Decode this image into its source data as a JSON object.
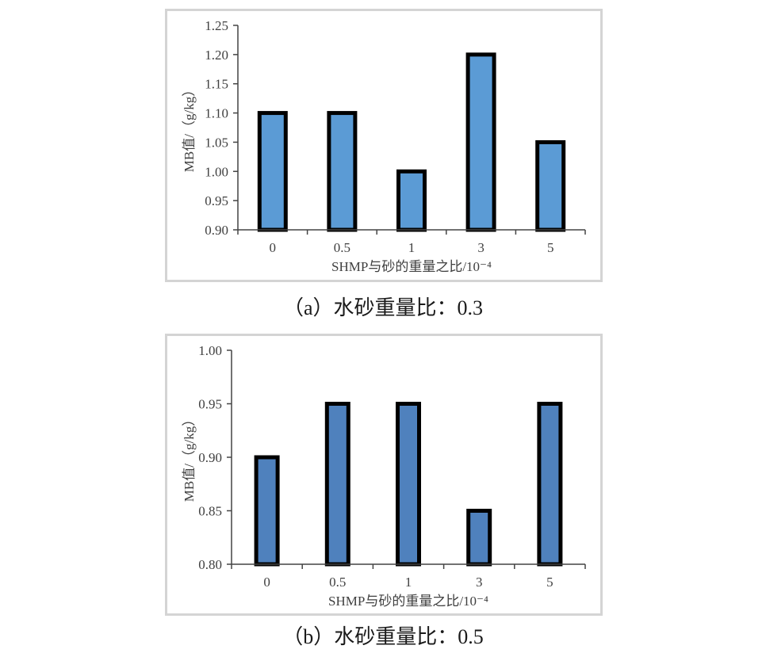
{
  "chart_data": [
    {
      "type": "bar",
      "categories": [
        "0",
        "0.5",
        "1",
        "3",
        "5"
      ],
      "values": [
        1.1,
        1.1,
        1.0,
        1.2,
        1.05
      ],
      "xlabel": "SHMP与砂的重量之比/10⁻⁴",
      "ylabel": "MB值/（g/kg）",
      "ylim": [
        0.9,
        1.25
      ],
      "yticks": [
        "0.90",
        "0.95",
        "1.00",
        "1.05",
        "1.10",
        "1.15",
        "1.20",
        "1.25"
      ],
      "bar_color": "#5b9bd5",
      "grid": false
    },
    {
      "type": "bar",
      "categories": [
        "0",
        "0.5",
        "1",
        "3",
        "5"
      ],
      "values": [
        0.9,
        0.95,
        0.95,
        0.85,
        0.95
      ],
      "xlabel": "SHMP与砂的重量之比/10⁻⁴",
      "ylabel": "MB值/（g/kg）",
      "ylim": [
        0.8,
        1.0
      ],
      "yticks": [
        "0.80",
        "0.85",
        "0.90",
        "0.95",
        "1.00"
      ],
      "bar_color": "#4f81bd",
      "grid": false
    }
  ],
  "captions": {
    "a": "（a）水砂重量比：0.3",
    "b": "（b）水砂重量比：0.5"
  }
}
